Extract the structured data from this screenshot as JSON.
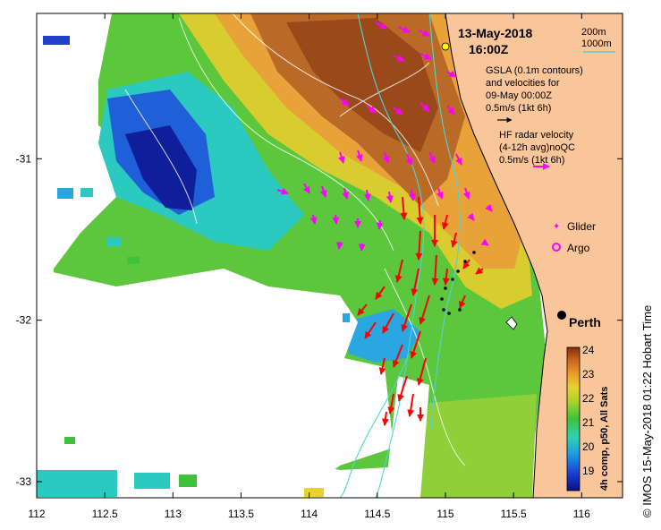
{
  "title": {
    "date": "13-May-2018",
    "time": "16:00Z"
  },
  "isobaths": {
    "label_200": "200m",
    "label_1000": "1000m",
    "color": "#4fd4d4"
  },
  "gsla": {
    "line1": "GSLA (0.1m contours)",
    "line2": "and velocities for",
    "line3": "09-May 00:00Z",
    "line4": "0.5m/s (1kt 6h)"
  },
  "radar": {
    "line1": "HF radar velocity",
    "line2": "(4-12h avg)noQC",
    "line3": "0.5m/s (1kt 6h)",
    "color": "#ff00ff"
  },
  "legend": {
    "glider": "Glider",
    "argo": "Argo"
  },
  "place": {
    "city": "Perth"
  },
  "colorbar": {
    "ticks": [
      "24",
      "23",
      "22",
      "21",
      "20",
      "19"
    ],
    "label": "4h comp, p50, All Sats"
  },
  "credit": "© IMOS 15-May-2018 01:22 Hobart Time",
  "axes": {
    "x_ticks": [
      "112",
      "112.5",
      "113",
      "113.5",
      "114",
      "114.5",
      "115",
      "115.5",
      "116"
    ],
    "y_ticks": [
      "-31",
      "-32",
      "-33"
    ],
    "x_range": [
      112,
      116.3
    ],
    "y_range": [
      -33.1,
      -30.1
    ]
  },
  "colors": {
    "land": "#f9c59a",
    "radar_arrows": "#ff00ff",
    "gsla_arrows": "#ff0000",
    "city_marker": "#000000"
  }
}
